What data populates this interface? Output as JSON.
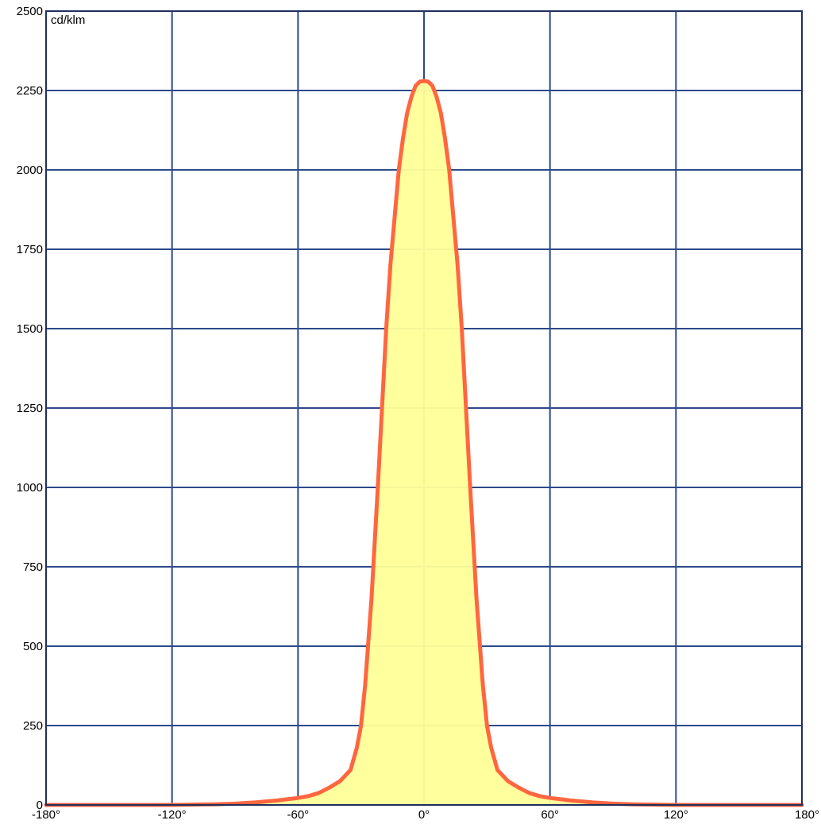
{
  "chart_data": {
    "type": "area",
    "unit_label": "cd/klm",
    "xlim": [
      -180,
      180
    ],
    "ylim": [
      0,
      2500
    ],
    "x_ticks": [
      -180,
      -120,
      -60,
      0,
      60,
      120,
      180
    ],
    "x_tick_labels": [
      "-180°",
      "-120°",
      "-60°",
      "0°",
      "60°",
      "120°",
      "180°"
    ],
    "y_ticks": [
      0,
      250,
      500,
      750,
      1000,
      1250,
      1500,
      1750,
      2000,
      2250,
      2500
    ],
    "y_tick_labels": [
      "0",
      "250",
      "500",
      "750",
      "1000",
      "1250",
      "1500",
      "1750",
      "2000",
      "2250",
      "2500"
    ],
    "grid": true,
    "colors": {
      "curve": "#ff6640",
      "fill": "#ffff99",
      "grid": "#2d4a8a",
      "frame": "#1f2f5e"
    },
    "series": [
      {
        "x": [
          -180,
          -150,
          -120,
          -100,
          -90,
          -80,
          -70,
          -60,
          -55,
          -50,
          -45,
          -40,
          -35,
          -32,
          -30,
          -28,
          -25,
          -22,
          -20,
          -18,
          -16,
          -14,
          -12,
          -10,
          -8,
          -6,
          -4,
          -2,
          0,
          2,
          4,
          6,
          8,
          10,
          12,
          14,
          16,
          18,
          20,
          22,
          25,
          28,
          30,
          32,
          35,
          40,
          45,
          50,
          55,
          60,
          70,
          80,
          90,
          100,
          120,
          150,
          180
        ],
        "y": [
          0,
          0,
          0,
          2,
          4,
          8,
          14,
          22,
          28,
          38,
          55,
          75,
          110,
          180,
          250,
          380,
          650,
          1000,
          1250,
          1500,
          1700,
          1850,
          2000,
          2100,
          2180,
          2230,
          2265,
          2278,
          2280,
          2278,
          2265,
          2230,
          2180,
          2100,
          2000,
          1850,
          1700,
          1500,
          1250,
          1000,
          650,
          380,
          250,
          180,
          110,
          75,
          55,
          38,
          28,
          22,
          14,
          8,
          4,
          2,
          0,
          0,
          0
        ]
      }
    ]
  }
}
